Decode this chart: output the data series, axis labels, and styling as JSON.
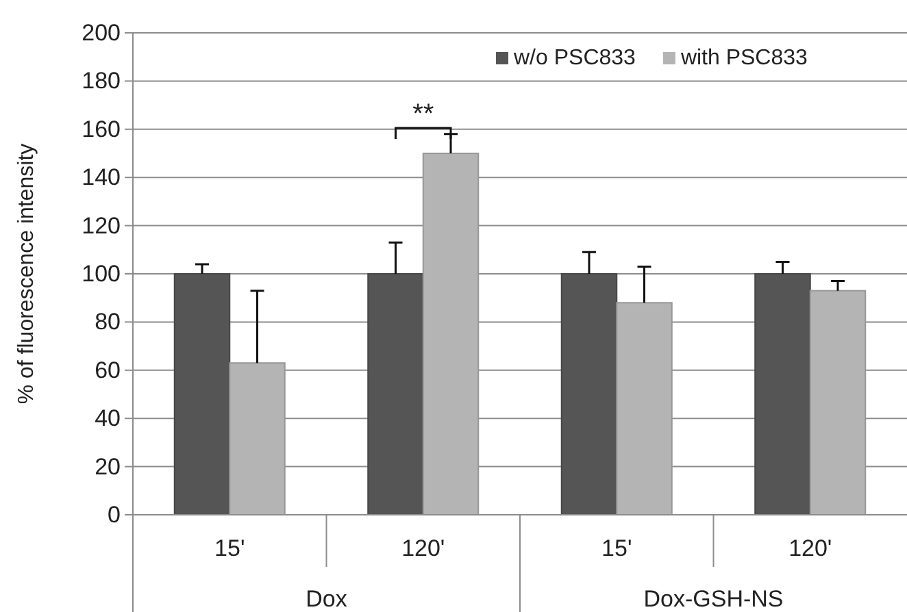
{
  "chart_data": {
    "type": "bar",
    "ylabel": "% of fluorescence intensity",
    "categories": [
      "15'",
      "120'",
      "15'",
      "120'"
    ],
    "series": [
      {
        "name": "w/o PSC833",
        "color": "#555555",
        "values": [
          100,
          100,
          100,
          100
        ],
        "errors": [
          [
            100,
            104
          ],
          [
            100,
            113
          ],
          [
            100,
            109
          ],
          [
            100,
            105
          ]
        ]
      },
      {
        "name": "with PSC833",
        "color": "#b4b4b4",
        "values": [
          63,
          150,
          88,
          93
        ],
        "errors": [
          [
            63,
            93
          ],
          [
            150,
            158
          ],
          [
            88,
            103
          ],
          [
            93,
            97
          ]
        ]
      }
    ],
    "ylim": [
      0,
      200
    ],
    "yticks": [
      0,
      20,
      40,
      60,
      80,
      100,
      120,
      140,
      160,
      180,
      200
    ],
    "grid": "y",
    "legend": "top right",
    "annotations": [
      "**",
      "Dox",
      "Dox-GSH-NS"
    ]
  }
}
